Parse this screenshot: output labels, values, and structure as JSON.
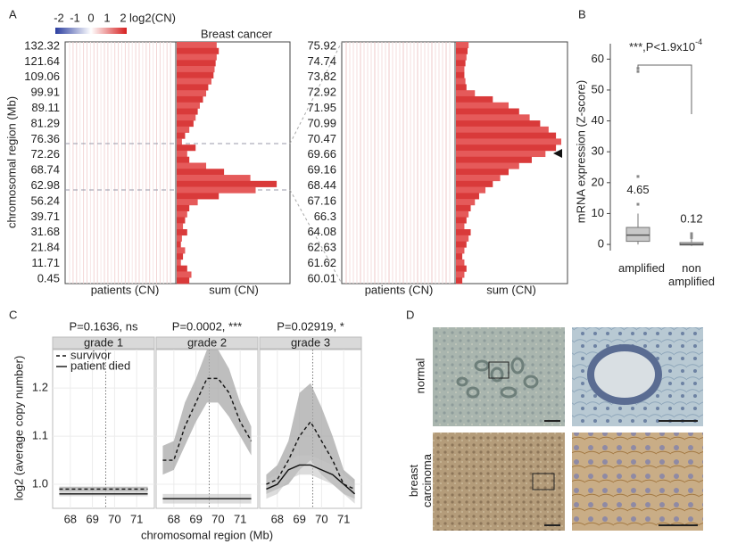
{
  "panel_labels": [
    "A",
    "B",
    "C",
    "D"
  ],
  "chart_data": [
    {
      "type": "heatmap-sum",
      "title": "Breast cancer",
      "colorbar_ticks": [
        -2,
        -1,
        0,
        1,
        2
      ],
      "colorbar_label": "log2(CN)",
      "y_label": "chromosomal region (Mb)",
      "x_labels": [
        "patients (CN)",
        "sum (CN)"
      ],
      "row_labels": [
        132.32,
        121.64,
        109.06,
        99.91,
        89.11,
        81.29,
        76.36,
        72.26,
        68.74,
        62.98,
        56.24,
        39.71,
        31.68,
        21.84,
        11.71,
        0.45
      ],
      "sum_values": [
        38,
        40,
        38,
        37,
        36,
        35,
        33,
        30,
        28,
        25,
        22,
        20,
        18,
        16,
        12,
        8,
        5,
        18,
        10,
        12,
        28,
        45,
        70,
        95,
        75,
        40,
        20,
        12,
        10,
        8,
        6,
        10,
        5,
        4,
        8,
        6,
        4,
        10,
        14,
        12
      ],
      "zoom_row_labels": [
        75.92,
        74.74,
        73.82,
        72.92,
        71.95,
        70.99,
        70.47,
        69.66,
        69.16,
        68.44,
        67.16,
        66.3,
        64.08,
        62.63,
        61.62,
        60.01
      ],
      "zoom_sum_values": [
        12,
        11,
        10,
        9,
        8,
        8,
        9,
        10,
        18,
        35,
        50,
        60,
        70,
        80,
        88,
        95,
        100,
        95,
        85,
        72,
        60,
        50,
        42,
        35,
        28,
        22,
        18,
        14,
        12,
        10,
        8,
        14,
        12,
        10,
        8,
        6,
        8,
        10,
        8,
        6
      ]
    },
    {
      "type": "box",
      "categories": [
        "amplified",
        "non amplified"
      ],
      "y_label": "mRNA expression (Z-score)",
      "ylim": [
        -2,
        65
      ],
      "yticks": [
        0,
        10,
        20,
        30,
        40,
        50,
        60
      ],
      "boxes": [
        {
          "whisker_low": 0,
          "q1": 1,
          "median": 3,
          "q3": 5.5,
          "whisker_high": 10,
          "outliers": [
            13,
            22,
            56,
            57
          ]
        },
        {
          "whisker_low": -0.5,
          "q1": -0.2,
          "median": 0,
          "q3": 0.6,
          "whisker_high": 1.8,
          "outliers": [
            2.2,
            2.8,
            3.5
          ]
        }
      ],
      "means": [
        4.65,
        0.12
      ],
      "annotation": "***,P<1.9x10",
      "annotation_exponent": "-4"
    },
    {
      "type": "facet-line",
      "y_label": "log2 (average copy number)",
      "x_label": "chromosomal region (Mb)",
      "xlim": [
        67.2,
        71.8
      ],
      "xticks": [
        68,
        69,
        70,
        71
      ],
      "ylim": [
        0.95,
        1.28
      ],
      "yticks": [
        {
          "value": 1,
          "label": "1.0"
        },
        {
          "value": 1.1,
          "label": "1.1"
        },
        {
          "value": 1.2,
          "label": "1.2"
        }
      ],
      "highlight_x": 69.6,
      "legend": [
        "survivor",
        "patient died"
      ],
      "x": [
        67.5,
        68,
        68.5,
        69,
        69.5,
        70,
        70.5,
        71,
        71.5
      ],
      "facets": [
        {
          "name": "grade 1",
          "title": "P=0.1636, ns",
          "series": [
            {
              "values": [
                0.99,
                0.99,
                0.99,
                0.99,
                0.99,
                0.99,
                0.99,
                0.99,
                0.99
              ],
              "lower": [
                0.985,
                0.985,
                0.985,
                0.985,
                0.985,
                0.985,
                0.985,
                0.985,
                0.985
              ],
              "upper": [
                0.995,
                0.995,
                0.995,
                0.995,
                0.995,
                0.995,
                0.995,
                0.995,
                0.995
              ]
            },
            {
              "values": [
                0.98,
                0.98,
                0.98,
                0.98,
                0.98,
                0.98,
                0.98,
                0.98,
                0.98
              ],
              "lower": [
                0.975,
                0.975,
                0.975,
                0.975,
                0.975,
                0.975,
                0.975,
                0.975,
                0.975
              ],
              "upper": [
                0.985,
                0.985,
                0.985,
                0.985,
                0.985,
                0.985,
                0.985,
                0.985,
                0.985
              ]
            }
          ]
        },
        {
          "name": "grade 2",
          "title": "P=0.0002, ***",
          "series": [
            {
              "values": [
                1.05,
                1.05,
                1.12,
                1.17,
                1.22,
                1.22,
                1.19,
                1.13,
                1.09
              ],
              "lower": [
                1.02,
                1.03,
                1.08,
                1.13,
                1.17,
                1.17,
                1.14,
                1.1,
                1.06
              ],
              "upper": [
                1.08,
                1.09,
                1.17,
                1.22,
                1.28,
                1.28,
                1.24,
                1.17,
                1.12
              ]
            },
            {
              "values": [
                0.97,
                0.97,
                0.97,
                0.97,
                0.97,
                0.97,
                0.97,
                0.97,
                0.97
              ],
              "lower": [
                0.96,
                0.96,
                0.96,
                0.96,
                0.96,
                0.96,
                0.96,
                0.96,
                0.96
              ],
              "upper": [
                0.98,
                0.98,
                0.98,
                0.98,
                0.98,
                0.98,
                0.98,
                0.98,
                0.98
              ]
            }
          ]
        },
        {
          "name": "grade 3",
          "title": "P=0.02919, *",
          "series": [
            {
              "values": [
                1.0,
                1.01,
                1.05,
                1.1,
                1.13,
                1.09,
                1.05,
                1.0,
                0.99
              ],
              "lower": [
                0.98,
                0.99,
                1.0,
                1.03,
                1.05,
                1.02,
                1.0,
                0.98,
                0.97
              ],
              "upper": [
                1.02,
                1.04,
                1.09,
                1.19,
                1.21,
                1.16,
                1.1,
                1.03,
                1.01
              ]
            },
            {
              "values": [
                0.99,
                1.0,
                1.03,
                1.04,
                1.04,
                1.03,
                1.02,
                1.0,
                0.98
              ],
              "lower": [
                0.97,
                0.98,
                1.01,
                1.02,
                1.02,
                1.01,
                1.0,
                0.98,
                0.96
              ],
              "upper": [
                1.01,
                1.02,
                1.05,
                1.06,
                1.06,
                1.05,
                1.04,
                1.02,
                1.0
              ]
            }
          ]
        }
      ]
    }
  ],
  "images": {
    "row_labels": [
      "normal",
      "breast carcinoma"
    ]
  }
}
